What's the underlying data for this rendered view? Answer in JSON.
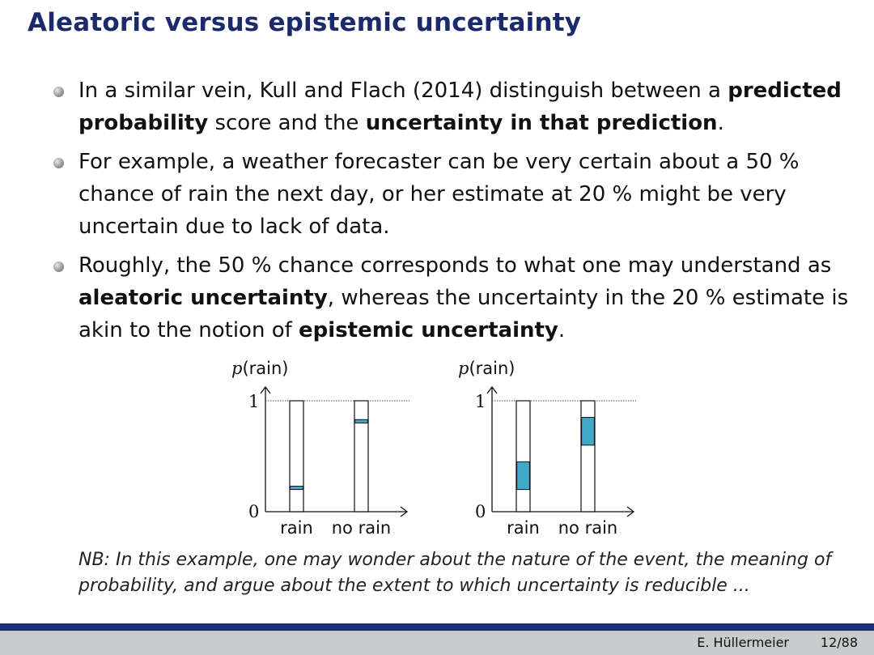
{
  "slide": {
    "title": "Aleatoric versus epistemic uncertainty",
    "bullets": [
      {
        "parts": [
          {
            "text": "In a similar vein, Kull and Flach (2014) distinguish between a ",
            "bold": false
          },
          {
            "text": "predicted probability",
            "bold": true
          },
          {
            "text": " score and the ",
            "bold": false
          },
          {
            "text": "uncertainty in that prediction",
            "bold": true
          },
          {
            "text": ".",
            "bold": false
          }
        ]
      },
      {
        "parts": [
          {
            "text": "For example, a weather forecaster can be very certain about a 50 % chance of rain the next day, or her estimate at 20 % might be very uncertain due to lack of data.",
            "bold": false
          }
        ]
      },
      {
        "parts": [
          {
            "text": "Roughly, the 50 % chance corresponds to what one may understand as ",
            "bold": false
          },
          {
            "text": "aleatoric uncertainty",
            "bold": true
          },
          {
            "text": ", whereas the uncertainty in the 20 % estimate is akin to the notion of ",
            "bold": false
          },
          {
            "text": "epistemic uncertainty",
            "bold": true
          },
          {
            "text": ".",
            "bold": false
          }
        ]
      }
    ],
    "nb": "NB: In this example, one may wonder about the nature of the event, the meaning of probability, and argue about the extent to which uncertainty is reducible ...",
    "footer": {
      "author": "E. Hüllermeier",
      "page": "12/88"
    }
  },
  "chart_data": [
    {
      "type": "bar",
      "ylabel_math": "p",
      "ylabel_text": "(rain)",
      "categories": [
        "rain",
        "no rain"
      ],
      "ylim": [
        0,
        1
      ],
      "yticks": [
        "0",
        "1"
      ],
      "intervals": [
        [
          0.2,
          0.23
        ],
        [
          0.8,
          0.83
        ]
      ],
      "fill_color": "#3fa9c6"
    },
    {
      "type": "bar",
      "ylabel_math": "p",
      "ylabel_text": "(rain)",
      "categories": [
        "rain",
        "no rain"
      ],
      "ylim": [
        0,
        1
      ],
      "yticks": [
        "0",
        "1"
      ],
      "intervals": [
        [
          0.2,
          0.45
        ],
        [
          0.6,
          0.85
        ]
      ],
      "fill_color": "#3fa9c6"
    }
  ]
}
